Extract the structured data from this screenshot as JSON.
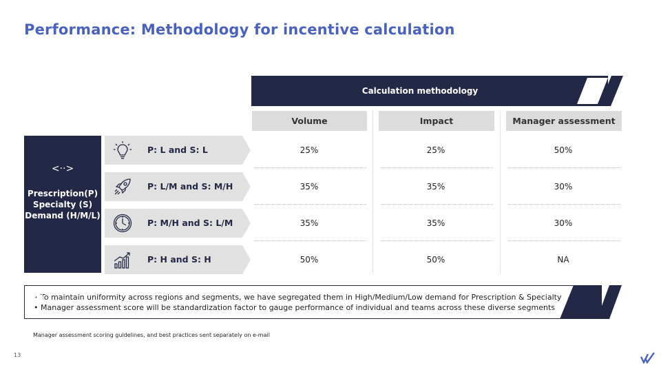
{
  "title": "Performance: Methodology for incentive calculation",
  "banner": {
    "label": "Calculation methodology",
    "icon": "people-icon"
  },
  "columns": [
    "Volume",
    "Impact",
    "Manager assessment"
  ],
  "left_box": {
    "icon": "arrows-horizontal-icon",
    "symbol": "<··>",
    "lines": [
      "Prescription(P)",
      "Specialty (S)",
      "Demand (H/M/L)"
    ]
  },
  "rows": [
    {
      "label": "P: L and S: L",
      "icon": "lightbulb-icon",
      "values": [
        "25%",
        "25%",
        "50%"
      ]
    },
    {
      "label": "P: L/M and S: M/H",
      "icon": "rocket-icon",
      "values": [
        "35%",
        "35%",
        "30%"
      ]
    },
    {
      "label": "P: M/H and S: L/M",
      "icon": "clock-icon",
      "values": [
        "35%",
        "35%",
        "30%"
      ]
    },
    {
      "label": "P: H and S: H",
      "icon": "growth-chart-icon",
      "values": [
        "50%",
        "50%",
        "NA"
      ]
    }
  ],
  "notes": [
    "To maintain uniformity across regions and segments, we have segregated them in High/Medium/Low demand for Prescription & Specialty",
    "Manager assessment score will be standardization factor to gauge performance of individual and teams across these diverse segments"
  ],
  "notes_icon": "target-icon",
  "footnote": "Manager assessment scoring guidelines, and best practices sent separately on e-mail",
  "page_number": "13",
  "colors": {
    "navy": "#232846",
    "title_blue": "#4a63b8",
    "grey_header": "#dcdcdc"
  }
}
